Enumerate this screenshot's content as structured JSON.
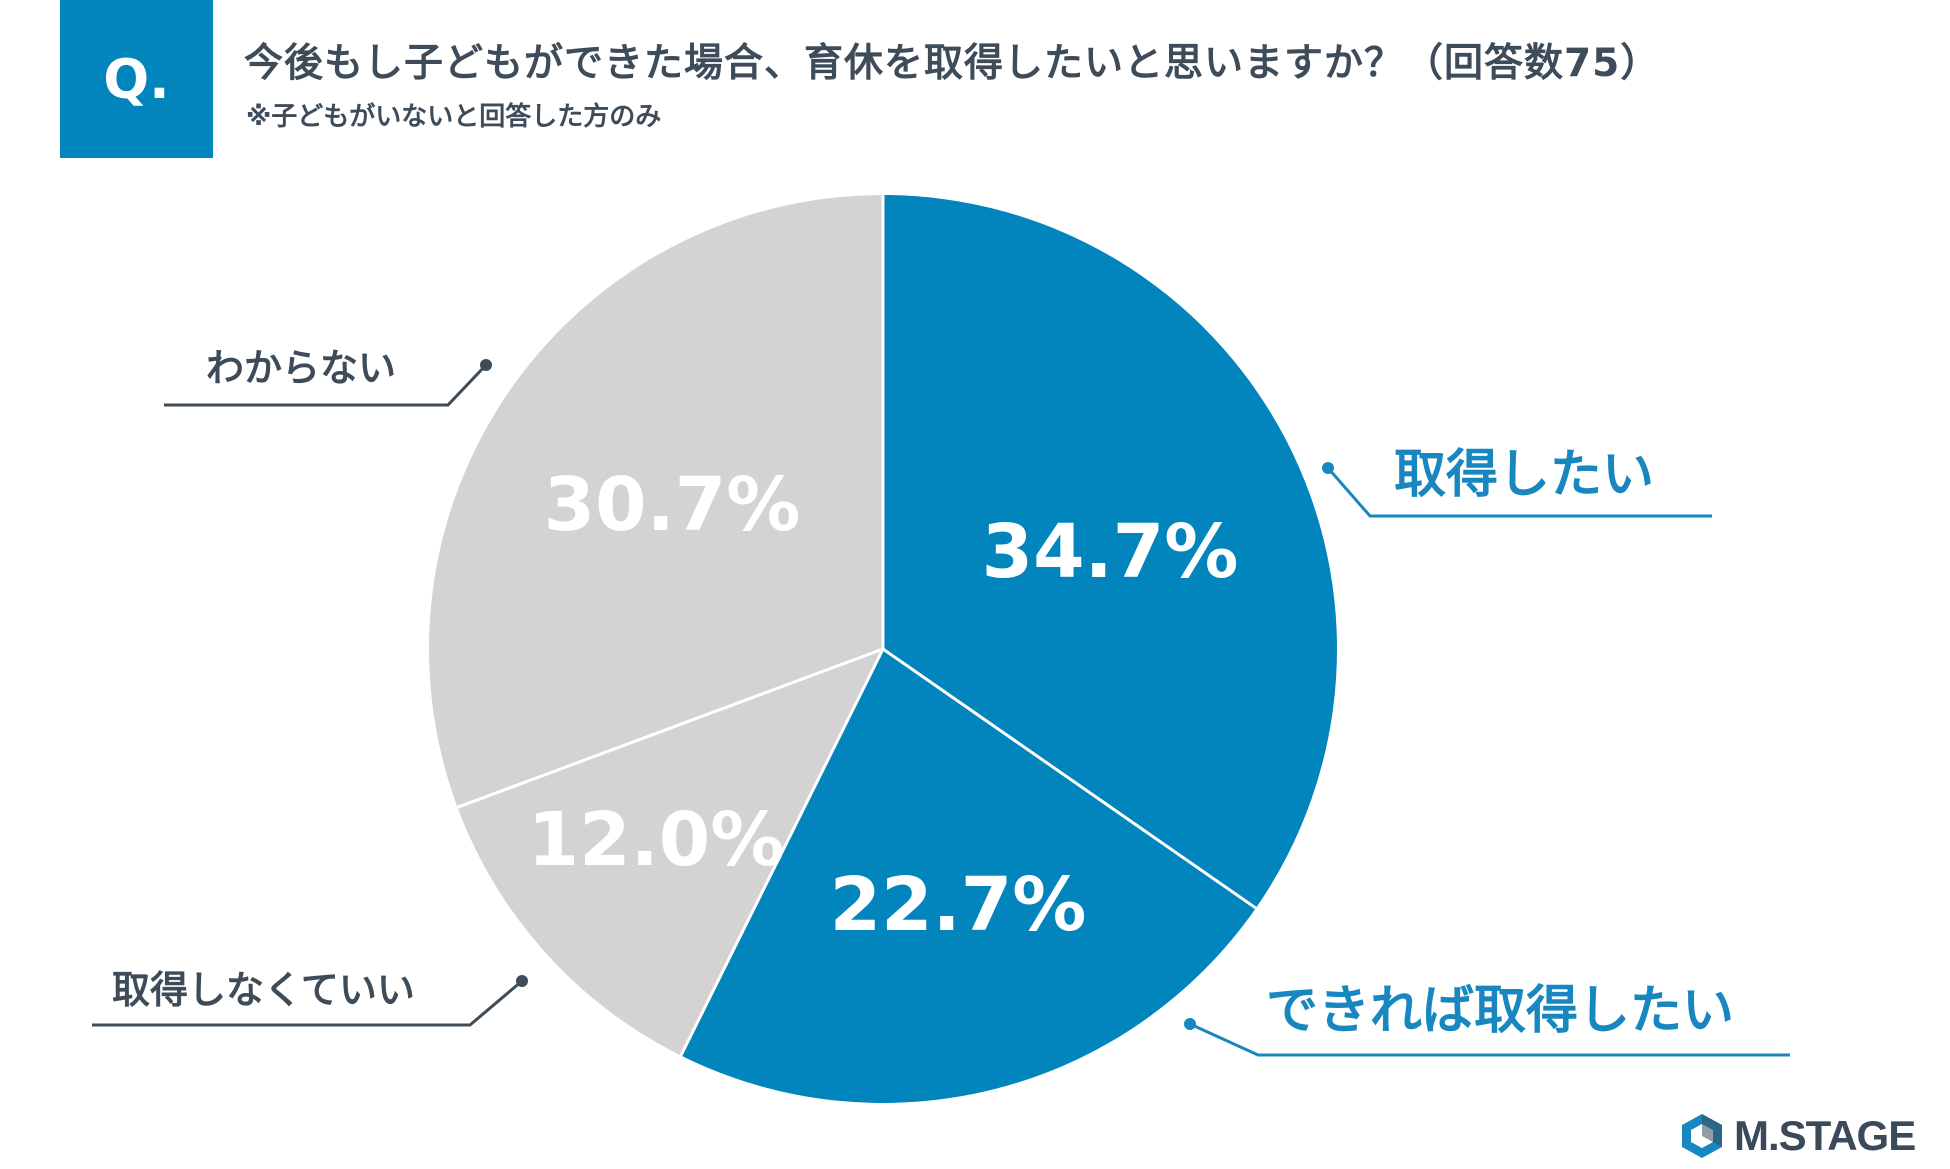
{
  "header": {
    "q_label": "Q.",
    "title": "今後もし子どもができた場合、育休を取得したいと思いますか？（回答数75）",
    "subtitle": "※子どもがいないと回答した方のみ"
  },
  "colors": {
    "blue": "#0284bd",
    "gray": "#d4d2d3",
    "label_blue": "#1987bf",
    "label_gray": "#3e4c5a"
  },
  "chart_data": {
    "type": "pie",
    "title": "今後もし子どもができた場合、育休を取得したいと思いますか？（回答数75）",
    "start": "12 o'clock, clockwise",
    "slices": [
      {
        "label": "取得したい",
        "value": 34.7,
        "display": "34.7%",
        "color": "#0284bd"
      },
      {
        "label": "できれば取得したい",
        "value": 22.7,
        "display": "22.7%",
        "color": "#0284bd"
      },
      {
        "label": "取得しなくていい",
        "value": 12.0,
        "display": "12.0%",
        "color": "#d4d2d3"
      },
      {
        "label": "わからない",
        "value": 30.7,
        "display": "30.7%",
        "color": "#d4d2d3"
      }
    ]
  },
  "logo": {
    "text": "M.STAGE"
  }
}
